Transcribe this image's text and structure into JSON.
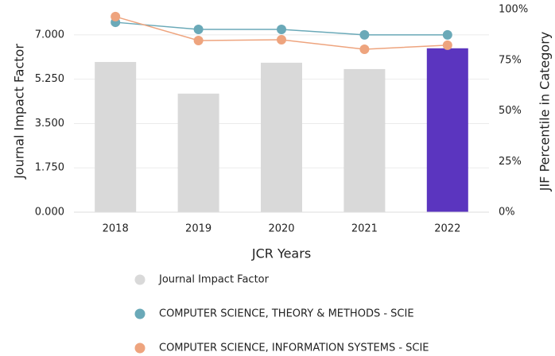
{
  "chart_data": {
    "type": "bar-line",
    "xlabel": "JCR Years",
    "ylabel": "Journal Impact Factor",
    "y2label": "JIF Percentile in Category",
    "categories": [
      "2018",
      "2019",
      "2020",
      "2021",
      "2022"
    ],
    "series": [
      {
        "name": "Journal Impact Factor",
        "kind": "bar",
        "color": "#d9d9d9",
        "colors": [
          "#d9d9d9",
          "#d9d9d9",
          "#d9d9d9",
          "#d9d9d9",
          "#5b35bf"
        ],
        "values": [
          5.93,
          4.68,
          5.9,
          5.65,
          6.47
        ]
      },
      {
        "name": "COMPUTER SCIENCE, THEORY & METHODS - SCIE",
        "kind": "line",
        "axis": "y2",
        "color": "#6aa9b8",
        "values": [
          93.7,
          90.2,
          90.2,
          87.5,
          87.5
        ]
      },
      {
        "name": "COMPUTER SCIENCE, INFORMATION SYSTEMS - SCIE",
        "kind": "line",
        "axis": "y2",
        "color": "#eea47e",
        "values": [
          96.5,
          84.7,
          85.1,
          80.4,
          82.4
        ]
      }
    ],
    "ylim": [
      0,
      8
    ],
    "yticks": [
      {
        "value": 0,
        "label": "0.000"
      },
      {
        "value": 1.75,
        "label": "1.750"
      },
      {
        "value": 3.5,
        "label": "3.500"
      },
      {
        "value": 5.25,
        "label": "5.250"
      },
      {
        "value": 7,
        "label": "7.000"
      }
    ],
    "y2lim": [
      0,
      100
    ],
    "y2ticks": [
      {
        "value": 0,
        "label": "0%"
      },
      {
        "value": 25,
        "label": "25%"
      },
      {
        "value": 50,
        "label": "50%"
      },
      {
        "value": 75,
        "label": "75%"
      },
      {
        "value": 100,
        "label": "100%"
      }
    ],
    "grid": true
  }
}
